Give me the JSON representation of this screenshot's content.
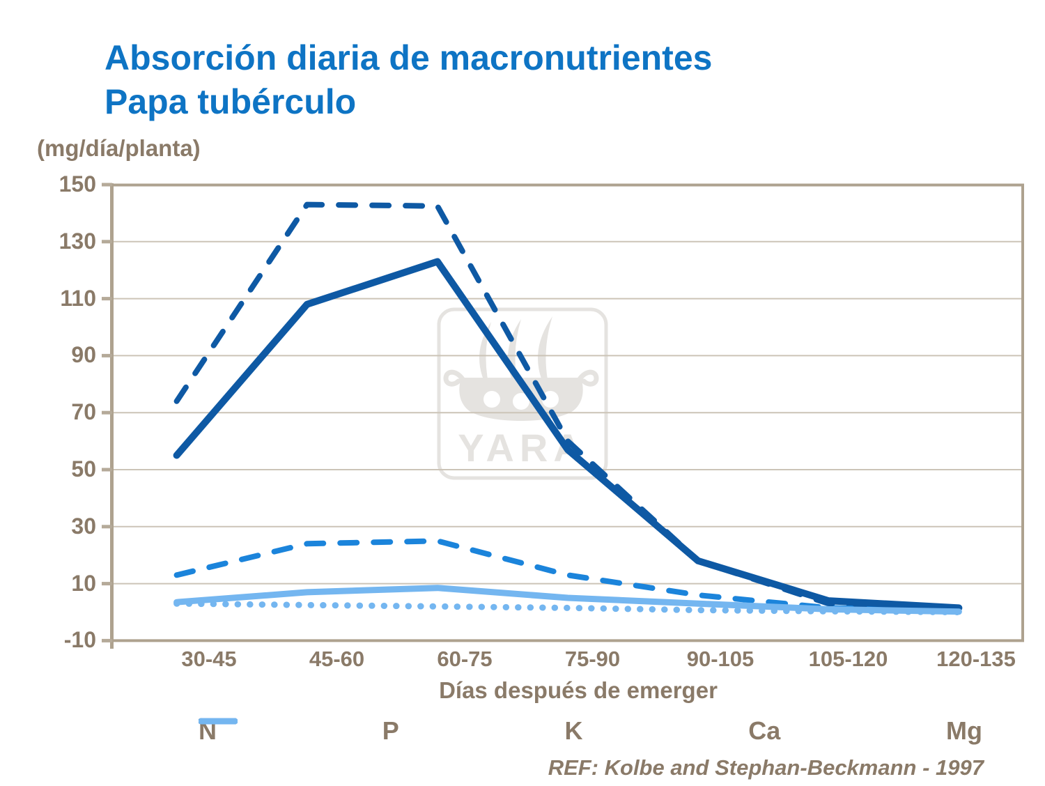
{
  "title": {
    "line1": "Absorción diaria de macronutrientes",
    "line2": "Papa tubérculo"
  },
  "watermark": "YARA",
  "ref_text": "REF: Kolbe and Stephan-Beckmann - 1997",
  "colors": {
    "title_blue": "#0E74C4",
    "dark_blue": "#0E59A4",
    "medium_blue": "#1B84DB",
    "light_blue": "#74B6F0",
    "text_brown": "#8A7A68",
    "axis_border": "#AEA28F",
    "gridline": "#CCC4B7",
    "tick": "#B5AA99",
    "watermark_gray": "#E5E3E0"
  },
  "chart_data": {
    "type": "line",
    "title": "Absorción diaria de macronutrientes",
    "subtitle": "Papa tubérculo",
    "y_unit": "(mg/día/planta)",
    "xlabel": "Días después de emerger",
    "categories": [
      "30-45",
      "45-60",
      "60-75",
      "75-90",
      "90-105",
      "105-120",
      "120-135"
    ],
    "ylim": [
      -10,
      150
    ],
    "yticks": [
      150,
      130,
      110,
      90,
      70,
      50,
      30,
      10,
      -10
    ],
    "grid": true,
    "legend_position": "bottom",
    "series": [
      {
        "name": "N",
        "color": "#0E59A4",
        "style": "solid",
        "swatch": "solid-line",
        "width": 10,
        "values": [
          55,
          108,
          123,
          57,
          18,
          4,
          1.5
        ]
      },
      {
        "name": "P",
        "color": "#1B84DB",
        "style": "dashed",
        "swatch": "single-dash",
        "width": 8,
        "values": [
          13,
          24,
          25,
          13,
          6,
          1.5,
          0.5
        ]
      },
      {
        "name": "K",
        "color": "#0E59A4",
        "style": "dashed",
        "swatch": "dash-dot",
        "width": 8,
        "values": [
          74,
          143,
          142.5,
          60,
          18,
          3,
          1.5
        ]
      },
      {
        "name": "Ca",
        "color": "#74B6F0",
        "style": "dotted",
        "swatch": "dots",
        "width": 9,
        "values": [
          3,
          2.5,
          2,
          1.5,
          0.7,
          0.3,
          0
        ]
      },
      {
        "name": "Mg",
        "color": "#74B6F0",
        "style": "solid",
        "swatch": "solid-line",
        "width": 9,
        "values": [
          3.5,
          7,
          8.5,
          5,
          3,
          1,
          0.2
        ]
      }
    ],
    "ref": "REF: Kolbe and Stephan-Beckmann - 1997"
  }
}
